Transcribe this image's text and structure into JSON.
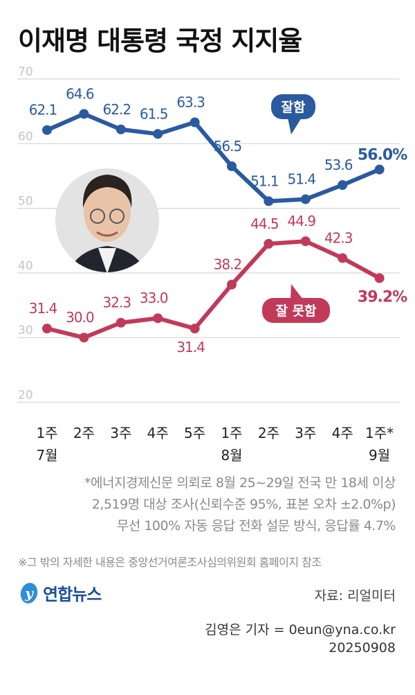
{
  "title": "이재명 대통령 국정 지지율",
  "chart_data": {
    "type": "line",
    "title": "이재명 대통령 국정 지지율",
    "categories": [
      "1주 7월",
      "2주",
      "3주",
      "4주",
      "5주",
      "1주 8월",
      "2주",
      "3주",
      "4주",
      "1주* 9월"
    ],
    "x_tick_lines": [
      [
        "1주",
        "7월"
      ],
      [
        "2주",
        ""
      ],
      [
        "3주",
        ""
      ],
      [
        "4주",
        ""
      ],
      [
        "5주",
        ""
      ],
      [
        "1주",
        "8월"
      ],
      [
        "2주",
        ""
      ],
      [
        "3주",
        ""
      ],
      [
        "4주",
        ""
      ],
      [
        "1주*",
        "9월"
      ]
    ],
    "ylim": [
      20,
      70
    ],
    "yticks": [
      "20",
      "30",
      "40",
      "50",
      "60",
      "70"
    ],
    "grid": true,
    "series": [
      {
        "name": "잘함",
        "color": "#2a5aa0",
        "values": [
          62.1,
          64.6,
          62.2,
          61.5,
          63.3,
          56.5,
          51.1,
          51.4,
          53.6,
          56.0
        ],
        "labels": [
          "62.1",
          "64.6",
          "62.2",
          "61.5",
          "63.3",
          "56.5",
          "51.1",
          "51.4",
          "53.6",
          "56.0%"
        ]
      },
      {
        "name": "잘 못함",
        "color": "#c13a5a",
        "values": [
          31.4,
          30.0,
          32.3,
          33.0,
          31.4,
          38.2,
          44.5,
          44.9,
          42.3,
          39.2
        ],
        "labels": [
          "31.4",
          "30.0",
          "32.3",
          "33.0",
          "31.4",
          "38.2",
          "44.5",
          "44.9",
          "42.3",
          "39.2%"
        ]
      }
    ]
  },
  "notes": {
    "survey": [
      "*에너지경제신문 의뢰로 8월 25~29일 전국 만 18세 이상",
      "2,519명 대상 조사(신뢰수준 95%, 표본 오차 ±2.0%p)",
      "무선 100% 자동 응답 전화 설문 방식, 응답률 4.7%"
    ],
    "reference": "※그 밖의 자세한 내용은 중앙선거여론조사심의위원회 홈페이지 참조"
  },
  "logo": "연합뉴스",
  "source": "자료: 리얼미터",
  "credit": [
    "김영은 기자 = 0eun@yna.co.kr",
    "20250908"
  ]
}
